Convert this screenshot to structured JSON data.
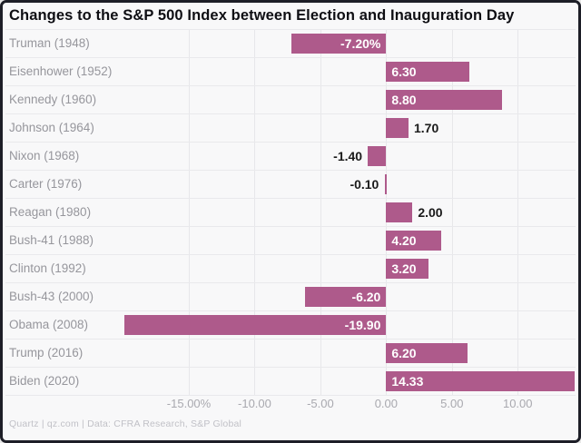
{
  "title": "Changes to the S&P 500 Index between Election and Inauguration Day",
  "footer": "Quartz | qz.com | Data: CFRA Research, S&P Global",
  "colors": {
    "bar": "#ae5a8b",
    "background": "#f8f8f9",
    "frame_border": "#1d1e27",
    "gridline": "#e7e7ea",
    "value_inside": "#ffffff",
    "value_outside": "#1a1a1a",
    "category_label": "#96969c",
    "tick_label": "#a9a9af"
  },
  "chart_data": {
    "type": "bar",
    "orientation": "horizontal",
    "title": "Changes to the S&P 500 Index between Election and Inauguration Day",
    "categories": [
      "Truman (1948)",
      "Eisenhower (1952)",
      "Kennedy (1960)",
      "Johnson (1964)",
      "Nixon (1968)",
      "Carter (1976)",
      "Reagan (1980)",
      "Bush-41 (1988)",
      "Clinton (1992)",
      "Bush-43 (2000)",
      "Obama (2008)",
      "Trump (2016)",
      "Biden (2020)"
    ],
    "values": [
      -7.2,
      6.3,
      8.8,
      1.7,
      -1.4,
      -0.1,
      2.0,
      4.2,
      3.2,
      -6.2,
      -19.9,
      6.2,
      14.33
    ],
    "value_labels": [
      "-7.20%",
      "6.30",
      "8.80",
      "1.70",
      "-1.40",
      "-0.10",
      "2.00",
      "4.20",
      "3.20",
      "-6.20",
      "-19.90",
      "6.20",
      "14.33"
    ],
    "xlim": [
      -19.9,
      14.33
    ],
    "ticks": [
      {
        "value": -15,
        "label": "-15.00%"
      },
      {
        "value": -10,
        "label": "-10.00"
      },
      {
        "value": -5,
        "label": "-5.00"
      },
      {
        "value": 0,
        "label": "0.00"
      },
      {
        "value": 5,
        "label": "5.00"
      },
      {
        "value": 10,
        "label": "10.00"
      }
    ],
    "grid": "vertical",
    "legend": "none",
    "source": "Quartz | qz.com | Data: CFRA Research, S&P Global"
  }
}
